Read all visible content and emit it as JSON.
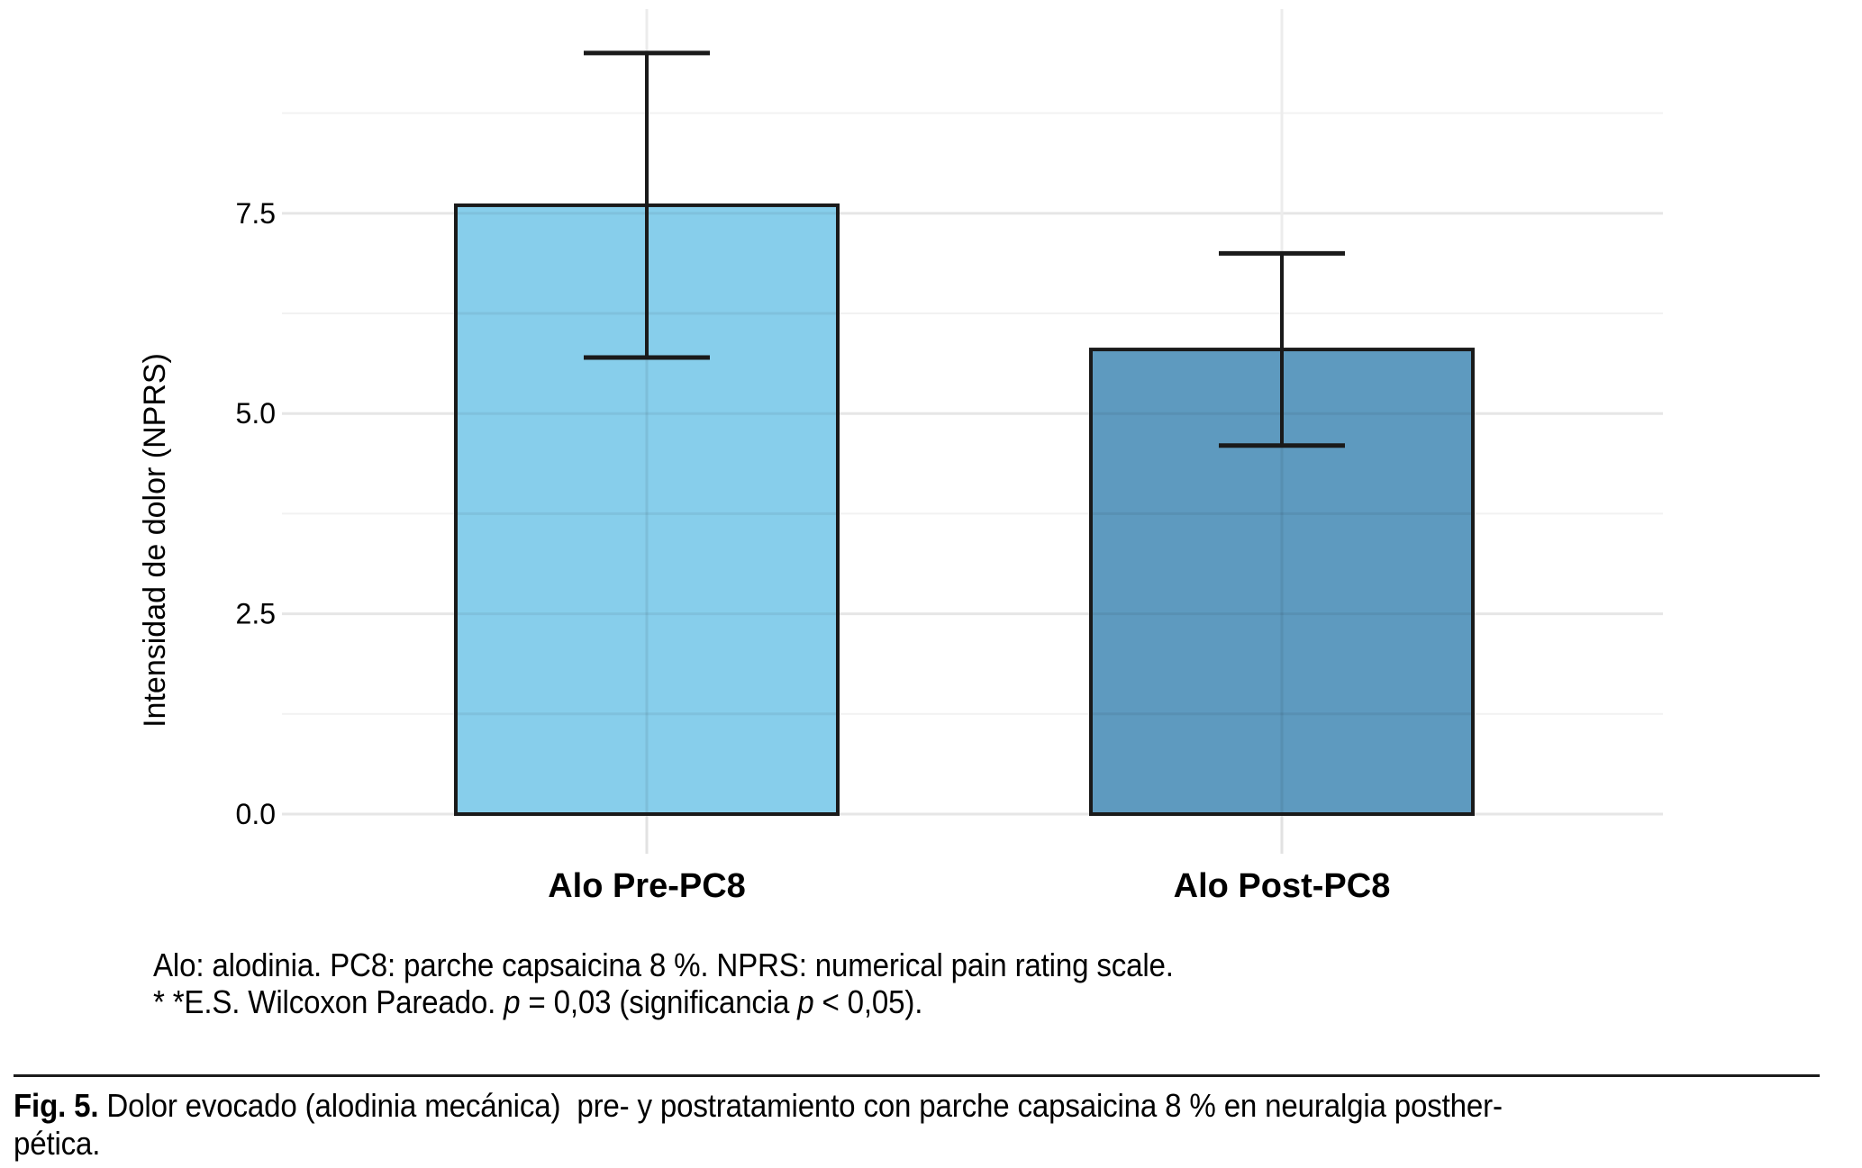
{
  "chart_data": {
    "type": "bar",
    "categories": [
      "Alo Pre-PC8",
      "Alo Post-PC8"
    ],
    "values": [
      7.6,
      5.8
    ],
    "error_upper": [
      9.5,
      7.0
    ],
    "error_lower": [
      5.7,
      4.6
    ],
    "bar_colors": [
      "#87CEEB",
      "#5E9ABF"
    ],
    "bar_outline_color": "#1A1A1A",
    "errorbar_color": "#1A1A1A",
    "title": "",
    "xlabel": "",
    "ylabel": "Intensidad de dolor (NPRS)",
    "ytick_labels": [
      "0.0",
      "2.5",
      "5.0",
      "7.5"
    ],
    "ytick_values": [
      0,
      2.5,
      5.0,
      7.5
    ],
    "minor_grid_values": [
      1.25,
      3.75,
      6.25,
      8.75
    ],
    "ylim": [
      0,
      10.05
    ],
    "grid": "horizontal major and minor light-gray lines, faint vertical line at each category center, gridlines visible through bars",
    "legend": "none",
    "major_grid_color": "#E6E6E6",
    "minor_grid_color": "#F2F2F2",
    "vertical_grid_color": "#ECECEC",
    "axis_text_color": "#000000"
  },
  "notes": {
    "line1": "Alo: alodinia. PC8: parche capsaicina 8 %. NPRS: numerical pain rating scale.",
    "line2_prefix": "* *E.S. Wilcoxon Pareado. ",
    "line2_p1": "p",
    "line2_mid": " = 0,03 (significancia ",
    "line2_p2": "p",
    "line2_suffix": " < 0,05)."
  },
  "figure_caption": {
    "label": "Fig. 5.",
    "line1_rest": " Dolor evocado (alodinia mecánica)  pre- y postratamiento con parche capsaicina 8 % en neuralgia posther-",
    "line2": "pética."
  }
}
